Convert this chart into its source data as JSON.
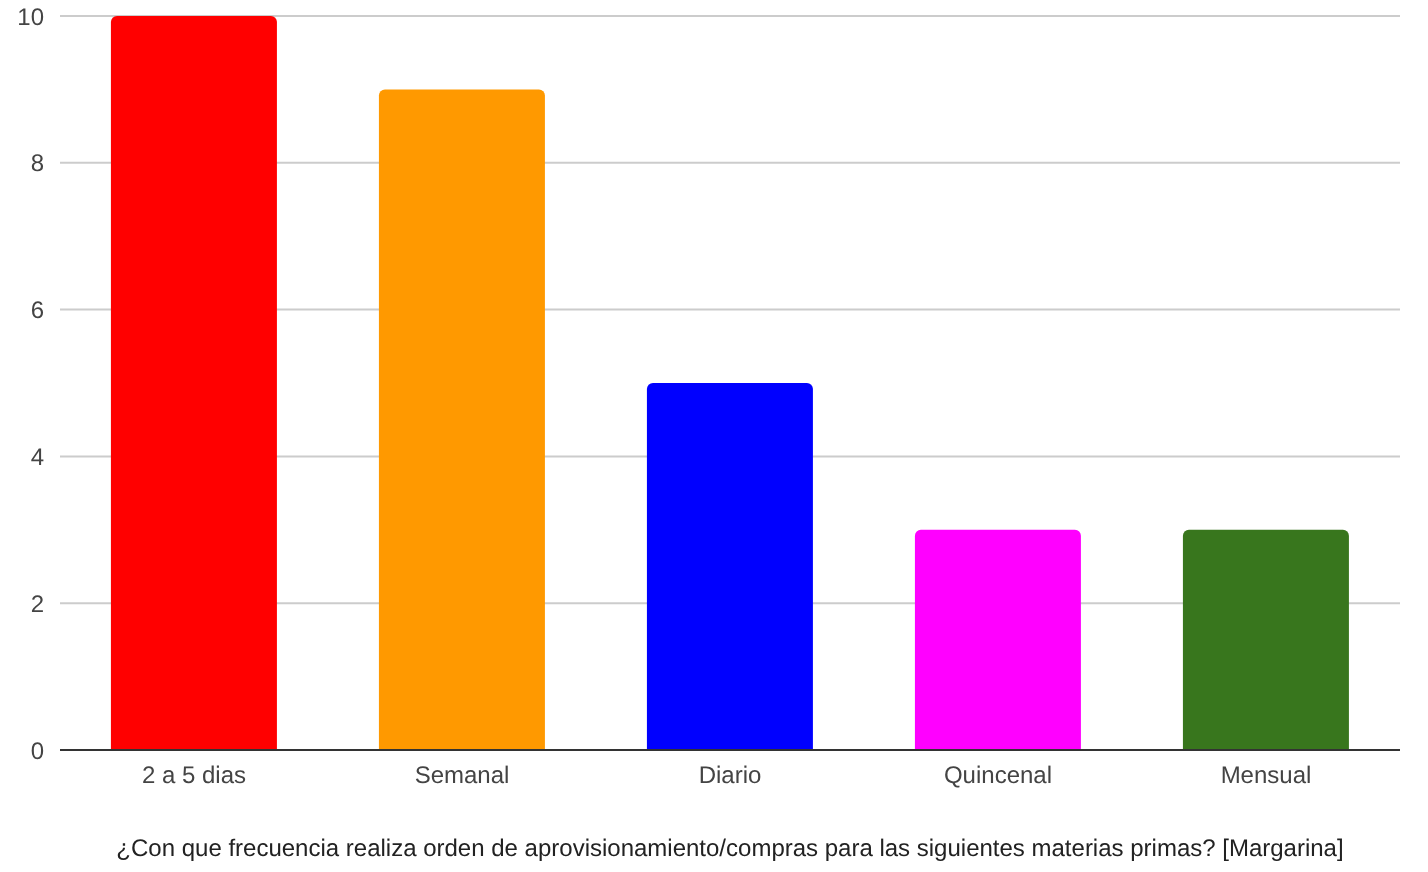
{
  "chart_data": {
    "type": "bar",
    "xlabel": "¿Con que frecuencia realiza orden de aprovisionamiento/compras para las siguientes materias primas?  [Margarina]",
    "categories": [
      "2 a 5 dias",
      "Semanal",
      "Diario",
      "Quincenal",
      "Mensual"
    ],
    "values": [
      10,
      9,
      5,
      3,
      3
    ],
    "colors": [
      "#ff0000",
      "#ff9900",
      "#0000ff",
      "#ff00ff",
      "#38761d"
    ],
    "ylim": [
      0,
      10
    ],
    "yticks": [
      0,
      2,
      4,
      6,
      8,
      10
    ],
    "grid": "y",
    "legend": false
  }
}
